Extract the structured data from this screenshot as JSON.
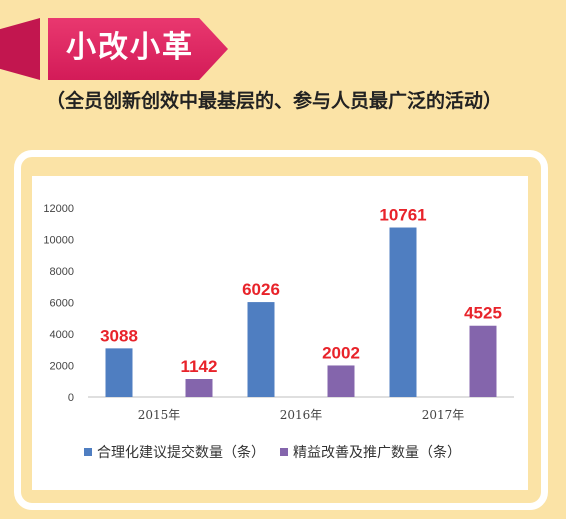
{
  "header": {
    "title": "小改小革",
    "subtitle": "（全员创新创效中最基层的、参与人员最广泛的活动）"
  },
  "colors": {
    "background": "#fbe3a6",
    "banner": "#e23265",
    "series_1": "#4f7ec1",
    "series_2": "#8465ac",
    "data_label": "#e8232a"
  },
  "chart_data": {
    "type": "bar",
    "categories": [
      "2015年",
      "2016年",
      "2017年"
    ],
    "series": [
      {
        "name": "合理化建议提交数量（条）",
        "values": [
          3088,
          6026,
          10761
        ],
        "color": "#4f7ec1"
      },
      {
        "name": "精益改善及推广数量（条）",
        "values": [
          1142,
          2002,
          4525
        ],
        "color": "#8465ac"
      }
    ],
    "title": "",
    "xlabel": "",
    "ylabel": "",
    "ylim": [
      0,
      12000
    ],
    "yticks": [
      0,
      2000,
      4000,
      6000,
      8000,
      10000,
      12000
    ],
    "grid": false,
    "legend": "bottom"
  }
}
